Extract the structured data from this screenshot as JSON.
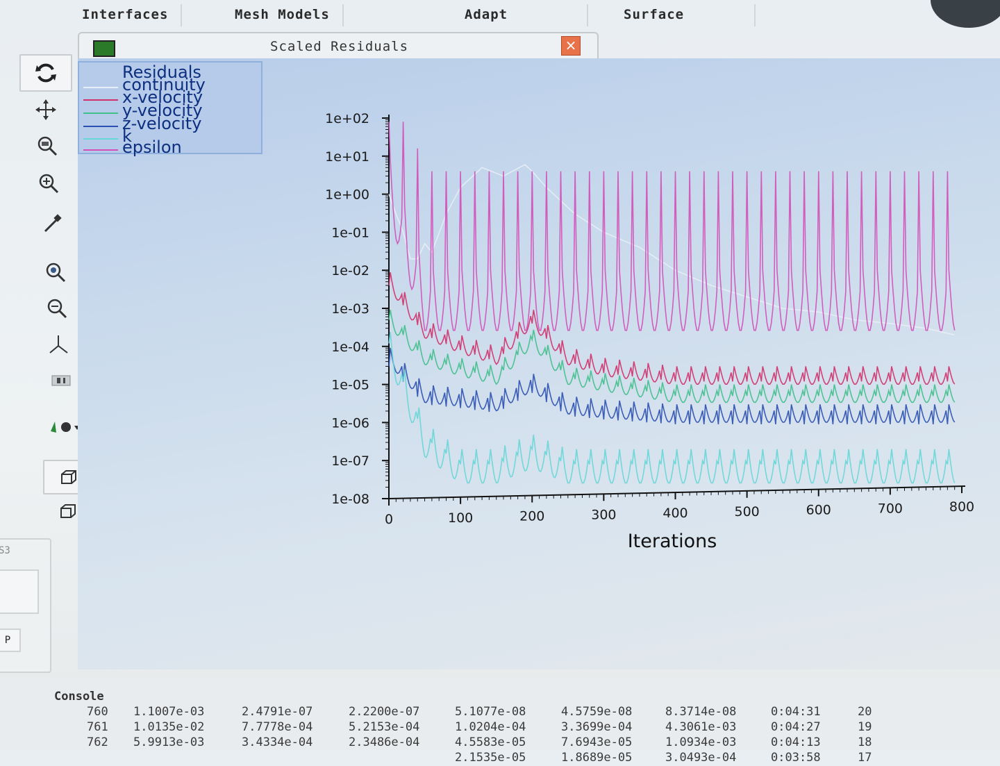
{
  "menu": {
    "tabs": [
      "Interfaces",
      "Mesh Models",
      "Adapt",
      "Surface"
    ]
  },
  "toolbar": {
    "icons": [
      "rotate-icon",
      "pan-icon",
      "zoom-fit-icon",
      "zoom-in-icon",
      "probe-icon",
      "zoom-box-icon",
      "zoom-out-icon",
      "axes-icon",
      "views-icon",
      "camera-icon",
      "view-cube-icon",
      "view-cube-alt-icon"
    ]
  },
  "side_panel": {
    "button_label": "P",
    "frame_label": "S3"
  },
  "window": {
    "title": "Scaled Residuals",
    "close_glyph": "×"
  },
  "legend": {
    "title": "Residuals",
    "items": [
      {
        "label": "continuity",
        "color": "#e8eef6"
      },
      {
        "label": "x-velocity",
        "color": "#d0306a"
      },
      {
        "label": "y-velocity",
        "color": "#3fbf8a"
      },
      {
        "label": "z-velocity",
        "color": "#2a4fb0"
      },
      {
        "label": "k",
        "color": "#66d6d6"
      },
      {
        "label": "epsilon",
        "color": "#d24fb8"
      }
    ]
  },
  "chart_data": {
    "type": "line",
    "title": "Scaled Residuals",
    "xlabel": "Iterations",
    "ylabel": "",
    "yscale": "log",
    "xlim": [
      0,
      800
    ],
    "ylim": [
      1e-08,
      100
    ],
    "x_ticks": [
      "0",
      "100",
      "200",
      "300",
      "400",
      "500",
      "600",
      "700",
      "800"
    ],
    "y_ticks": [
      "1e+02",
      "1e+01",
      "1e+00",
      "1e-01",
      "1e-02",
      "1e-03",
      "1e-04",
      "1e-05",
      "1e-06",
      "1e-07",
      "1e-08"
    ],
    "series": [
      {
        "name": "continuity",
        "x": [
          0,
          10,
          20,
          30,
          40,
          50,
          60,
          80,
          100,
          130,
          160,
          190,
          200,
          220,
          260,
          300,
          350,
          400,
          450,
          500,
          550,
          600,
          650,
          700,
          750,
          790
        ],
        "y": [
          1,
          0.3,
          0.1,
          0.02,
          0.02,
          0.05,
          0.03,
          0.3,
          1.5,
          5,
          3,
          6,
          4,
          1.5,
          0.3,
          0.1,
          0.04,
          0.01,
          0.004,
          0.002,
          0.001,
          0.0008,
          0.0005,
          0.0004,
          0.0003,
          0.0002
        ]
      },
      {
        "name": "x-velocity",
        "x": [
          0,
          50,
          100,
          150,
          200,
          250,
          300,
          400,
          500,
          600,
          700,
          790
        ],
        "y": [
          0.01,
          0.0005,
          0.0002,
          0.0001,
          0.001,
          0.0001,
          5e-05,
          3e-05,
          3e-05,
          3e-05,
          3e-05,
          3e-05
        ]
      },
      {
        "name": "y-velocity",
        "x": [
          0,
          50,
          100,
          150,
          200,
          250,
          300,
          400,
          500,
          600,
          700,
          790
        ],
        "y": [
          0.001,
          0.0001,
          5e-05,
          3e-05,
          0.0003,
          3e-05,
          2e-05,
          1e-05,
          1e-05,
          1e-05,
          1e-05,
          1e-05
        ]
      },
      {
        "name": "z-velocity",
        "x": [
          0,
          50,
          100,
          150,
          200,
          250,
          300,
          400,
          500,
          600,
          700,
          790
        ],
        "y": [
          0.0001,
          1e-05,
          8e-06,
          6e-06,
          2e-05,
          5e-06,
          4e-06,
          3e-06,
          3e-06,
          3e-06,
          3e-06,
          3e-06
        ]
      },
      {
        "name": "k",
        "x": [
          0,
          50,
          100,
          150,
          200,
          250,
          300,
          400,
          500,
          600,
          700,
          790
        ],
        "y": [
          0.0003,
          1e-06,
          2e-07,
          2e-07,
          5e-07,
          2e-07,
          2e-07,
          2e-07,
          2e-07,
          2e-07,
          2e-07,
          2e-07
        ]
      },
      {
        "name": "epsilon",
        "x": [
          0,
          50,
          100,
          150,
          200,
          250,
          300,
          400,
          500,
          600,
          700,
          790
        ],
        "y": [
          10,
          0.01,
          0.01,
          0.01,
          0.01,
          0.01,
          0.01,
          0.01,
          0.01,
          0.01,
          0.01,
          0.01
        ]
      }
    ]
  },
  "console": {
    "title": "Console",
    "rows": [
      [
        "760",
        "1.1007e-03",
        "2.4791e-07",
        "2.2200e-07",
        "5.1077e-08",
        "4.5759e-08",
        "8.3714e-08",
        "0:04:31",
        "20"
      ],
      [
        "761",
        "1.0135e-02",
        "7.7778e-04",
        "5.2153e-04",
        "1.0204e-04",
        "3.3699e-04",
        "4.3061e-03",
        "0:04:27",
        "19"
      ],
      [
        "762",
        "5.9913e-03",
        "3.4334e-04",
        "2.3486e-04",
        "4.5583e-05",
        "7.6943e-05",
        "1.0934e-03",
        "0:04:13",
        "18"
      ],
      [
        "",
        "",
        "",
        "",
        "2.1535e-05",
        "1.8689e-05",
        "3.0493e-04",
        "0:03:58",
        "17"
      ]
    ]
  }
}
